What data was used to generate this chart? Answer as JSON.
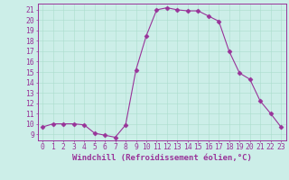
{
  "x": [
    0,
    1,
    2,
    3,
    4,
    5,
    6,
    7,
    8,
    9,
    10,
    11,
    12,
    13,
    14,
    15,
    16,
    17,
    18,
    19,
    20,
    21,
    22,
    23
  ],
  "y": [
    9.7,
    10.0,
    10.0,
    10.0,
    9.9,
    9.1,
    8.9,
    8.7,
    9.9,
    15.2,
    18.5,
    21.0,
    21.2,
    21.0,
    20.9,
    20.9,
    20.4,
    19.9,
    17.0,
    14.9,
    14.3,
    12.2,
    11.0,
    9.7
  ],
  "line_color": "#993399",
  "marker": "D",
  "marker_size": 2.5,
  "bg_color": "#cceee8",
  "grid_color": "#aaddcc",
  "xlabel": "Windchill (Refroidissement éolien,°C)",
  "xlabel_fontsize": 6.5,
  "ylabel_ticks": [
    9,
    10,
    11,
    12,
    13,
    14,
    15,
    16,
    17,
    18,
    19,
    20,
    21
  ],
  "ylim": [
    8.4,
    21.6
  ],
  "xlim": [
    -0.5,
    23.5
  ],
  "tick_fontsize": 5.8,
  "axis_color": "#993399",
  "tick_color": "#993399"
}
